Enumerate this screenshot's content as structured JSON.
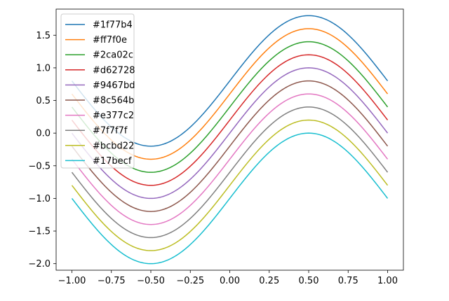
{
  "chart_data": {
    "type": "line",
    "title": "",
    "xlabel": "",
    "ylabel": "",
    "xlim": [
      -1.1,
      1.1
    ],
    "ylim": [
      -2.1,
      1.9
    ],
    "x_ticks": [
      -1.0,
      -0.75,
      -0.5,
      -0.25,
      0.0,
      0.25,
      0.5,
      0.75,
      1.0
    ],
    "x_tick_labels": [
      "−1.00",
      "−0.75",
      "−0.50",
      "−0.25",
      "0.00",
      "0.25",
      "0.50",
      "0.75",
      "1.00"
    ],
    "y_ticks": [
      1.5,
      1.0,
      0.5,
      0.0,
      -0.5,
      -1.0,
      -1.5,
      -2.0
    ],
    "y_tick_labels": [
      "1.5",
      "1.0",
      "0.5",
      "0.0",
      "−0.5",
      "−1.0",
      "−1.5",
      "−2.0"
    ],
    "grid": false,
    "legend_position": "top-left",
    "x": [
      -1.0,
      -0.9,
      -0.8,
      -0.7,
      -0.6,
      -0.5,
      -0.4,
      -0.3,
      -0.2,
      -0.1,
      0.0,
      0.1,
      0.2,
      0.3,
      0.4,
      0.5,
      0.6,
      0.7,
      0.8,
      0.9,
      1.0
    ],
    "series": [
      {
        "name": "#1f77b4",
        "color": "#1f77b4",
        "offset": 0.8,
        "values": [
          0.8,
          0.49,
          0.21,
          -0.01,
          -0.15,
          -0.2,
          -0.15,
          -0.01,
          0.21,
          0.49,
          0.8,
          1.11,
          1.39,
          1.61,
          1.75,
          1.8,
          1.75,
          1.61,
          1.39,
          1.11,
          0.8
        ]
      },
      {
        "name": "#ff7f0e",
        "color": "#ff7f0e",
        "offset": 0.6,
        "values": [
          0.6,
          0.29,
          0.01,
          -0.21,
          -0.35,
          -0.4,
          -0.35,
          -0.21,
          0.01,
          0.29,
          0.6,
          0.91,
          1.19,
          1.41,
          1.55,
          1.6,
          1.55,
          1.41,
          1.19,
          0.91,
          0.6
        ]
      },
      {
        "name": "#2ca02c",
        "color": "#2ca02c",
        "offset": 0.4,
        "values": [
          0.4,
          0.09,
          -0.19,
          -0.41,
          -0.55,
          -0.6,
          -0.55,
          -0.41,
          -0.19,
          0.09,
          0.4,
          0.71,
          0.99,
          1.21,
          1.35,
          1.4,
          1.35,
          1.21,
          0.99,
          0.71,
          0.4
        ]
      },
      {
        "name": "#d62728",
        "color": "#d62728",
        "offset": 0.2,
        "values": [
          0.2,
          -0.11,
          -0.39,
          -0.61,
          -0.75,
          -0.8,
          -0.75,
          -0.61,
          -0.39,
          -0.11,
          0.2,
          0.51,
          0.79,
          1.01,
          1.15,
          1.2,
          1.15,
          1.01,
          0.79,
          0.51,
          0.2
        ]
      },
      {
        "name": "#9467bd",
        "color": "#9467bd",
        "offset": 0.0,
        "values": [
          0.0,
          -0.31,
          -0.59,
          -0.81,
          -0.95,
          -1.0,
          -0.95,
          -0.81,
          -0.59,
          -0.31,
          0.0,
          0.31,
          0.59,
          0.81,
          0.95,
          1.0,
          0.95,
          0.81,
          0.59,
          0.31,
          0.0
        ]
      },
      {
        "name": "#8c564b",
        "color": "#8c564b",
        "offset": -0.2,
        "values": [
          -0.2,
          -0.51,
          -0.79,
          -1.01,
          -1.15,
          -1.2,
          -1.15,
          -1.01,
          -0.79,
          -0.51,
          -0.2,
          0.11,
          0.39,
          0.61,
          0.75,
          0.8,
          0.75,
          0.61,
          0.39,
          0.11,
          -0.2
        ]
      },
      {
        "name": "#e377c2",
        "color": "#e377c2",
        "offset": -0.4,
        "values": [
          -0.4,
          -0.71,
          -0.99,
          -1.21,
          -1.35,
          -1.4,
          -1.35,
          -1.21,
          -0.99,
          -0.71,
          -0.4,
          -0.09,
          0.19,
          0.41,
          0.55,
          0.6,
          0.55,
          0.41,
          0.19,
          -0.09,
          -0.4
        ]
      },
      {
        "name": "#7f7f7f",
        "color": "#7f7f7f",
        "offset": -0.6,
        "values": [
          -0.6,
          -0.91,
          -1.19,
          -1.41,
          -1.55,
          -1.6,
          -1.55,
          -1.41,
          -1.19,
          -0.91,
          -0.6,
          -0.29,
          -0.01,
          0.21,
          0.35,
          0.4,
          0.35,
          0.21,
          -0.01,
          -0.29,
          -0.6
        ]
      },
      {
        "name": "#bcbd22",
        "color": "#bcbd22",
        "offset": -0.8,
        "values": [
          -0.8,
          -1.11,
          -1.39,
          -1.61,
          -1.75,
          -1.8,
          -1.75,
          -1.61,
          -1.39,
          -1.11,
          -0.8,
          -0.49,
          -0.21,
          0.01,
          0.15,
          0.2,
          0.15,
          0.01,
          -0.21,
          -0.49,
          -0.8
        ]
      },
      {
        "name": "#17becf",
        "color": "#17becf",
        "offset": -1.0,
        "values": [
          -1.0,
          -1.31,
          -1.59,
          -1.81,
          -1.95,
          -2.0,
          -1.95,
          -1.81,
          -1.59,
          -1.31,
          -1.0,
          -0.69,
          -0.41,
          -0.19,
          -0.05,
          0.0,
          -0.05,
          -0.19,
          -0.41,
          -0.69,
          -1.0
        ]
      }
    ]
  }
}
